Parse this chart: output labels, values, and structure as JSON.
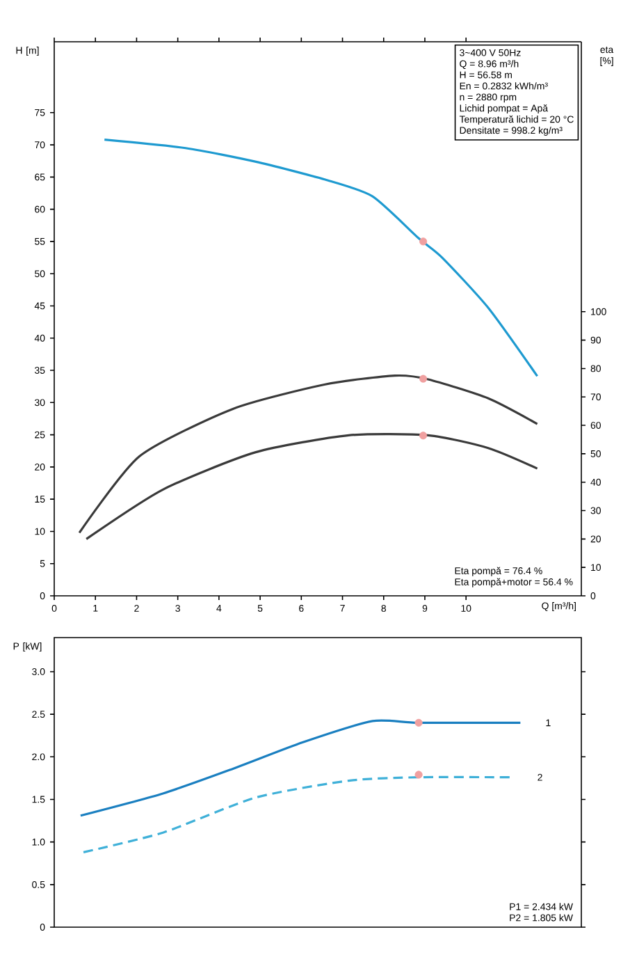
{
  "chart_data": [
    {
      "type": "line",
      "ylabel": "H [m]",
      "y2label": "eta [%]",
      "xlabel": "Q [m³/h]",
      "xlim": [
        0,
        12.8
      ],
      "xticks": [
        0,
        1,
        2,
        3,
        4,
        5,
        6,
        7,
        8,
        9,
        10
      ],
      "ylim": [
        0,
        86
      ],
      "yticks": [
        0,
        5,
        10,
        15,
        20,
        25,
        30,
        35,
        40,
        45,
        50,
        55,
        60,
        65,
        70,
        75
      ],
      "y2lim": [
        0,
        195
      ],
      "y2ticks": [
        0,
        10,
        20,
        30,
        40,
        50,
        60,
        70,
        80,
        90,
        100
      ],
      "grid": false,
      "series": [
        {
          "color": "#1e9ad0",
          "x": [
            1.22,
            3.19,
            4.88,
            6.58,
            7.73,
            8.85,
            9.42,
            10.54,
            11.73
          ],
          "values": [
            70.8,
            69.5,
            67.4,
            64.6,
            62.0,
            55.5,
            52.5,
            44.7,
            34.1
          ]
        },
        {
          "color": "#3a3a3a",
          "axis": "y2",
          "x": [
            0.61,
            2.07,
            4.34,
            6.58,
            8.27,
            9.08,
            10.54,
            11.73
          ],
          "values": [
            22.2,
            49.1,
            65.8,
            74.4,
            77.5,
            76.2,
            69.5,
            60.5
          ]
        },
        {
          "color": "#3a3a3a",
          "axis": "y2",
          "x": [
            0.78,
            2.64,
            4.88,
            7.15,
            9.08,
            10.54,
            11.73
          ],
          "values": [
            20,
            37.4,
            50.5,
            56.5,
            56.5,
            52,
            44.8
          ]
        },
        {
          "type": "scatter",
          "marker": "circle",
          "color": "#f0a0a0",
          "x": [
            8.96
          ],
          "values": [
            55
          ]
        },
        {
          "type": "scatter",
          "marker": "circle",
          "color": "#f0a0a0",
          "axis": "y2",
          "x": [
            8.96,
            8.96
          ],
          "values": [
            76.4,
            56.4
          ]
        }
      ],
      "annotations": [
        "3~400 V 50Hz",
        "Q = 8.96 m³/h",
        "H = 56.58 m",
        "En = 0.2832 kWh/m³",
        "n = 2880 rpm",
        "Lichid pompat = Apă",
        "Temperatură lichid = 20 °C",
        "Densitate = 998.2 kg/m³",
        "Eta pompă = 76.4 %",
        "Eta pompă+motor = 56.4 %"
      ]
    },
    {
      "type": "line",
      "ylabel": "P [kW]",
      "xlim": [
        0,
        12.8
      ],
      "ylim": [
        0,
        3.4
      ],
      "yticks": [
        0,
        {
          "value": 0.5,
          "label": "0.5"
        },
        {
          "value": 1,
          "label": "1.0"
        },
        {
          "value": 1.5,
          "label": "1.5"
        },
        {
          "value": 2,
          "label": "2.0"
        },
        {
          "value": 2.5,
          "label": "2.5"
        },
        {
          "value": 3,
          "label": "3.0"
        }
      ],
      "tick_labels": "y",
      "grid": false,
      "series": [
        {
          "name": "1",
          "color": "#1a7fc0",
          "x": [
            0.64,
            2.64,
            4.34,
            6.03,
            7.73,
            8.85,
            11.32
          ],
          "values": [
            1.31,
            1.57,
            1.86,
            2.17,
            2.42,
            2.4,
            2.4
          ]
        },
        {
          "name": "2",
          "color": "#3fb0d8",
          "line_style": "dashed",
          "x": [
            0.71,
            2.64,
            4.88,
            7.15,
            8.85,
            11.12
          ],
          "values": [
            0.88,
            1.11,
            1.52,
            1.72,
            1.76,
            1.76
          ]
        },
        {
          "type": "scatter",
          "marker": "circle",
          "color": "#f0a0a0",
          "x": [
            8.85,
            8.85
          ],
          "values": [
            2.4,
            1.79
          ]
        }
      ],
      "annotations": [
        "P1 = 2.434 kW",
        "P2 = 1.805 kW"
      ]
    }
  ]
}
